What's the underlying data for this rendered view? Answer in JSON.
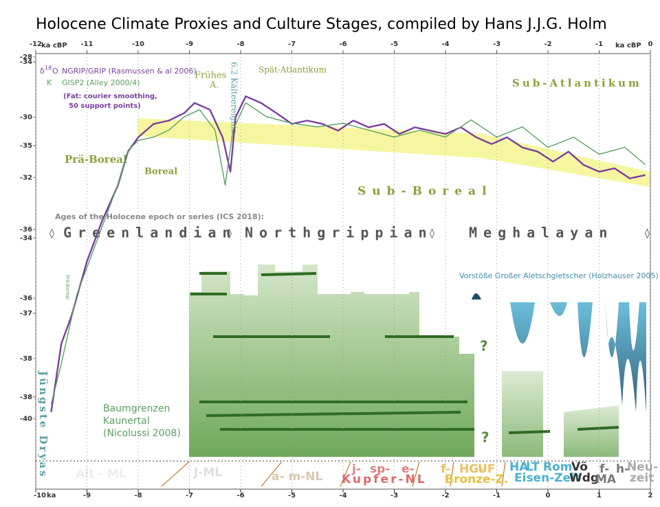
{
  "chart_data": {
    "type": "line",
    "title": "Holocene Climate Proxies and Culture Stages, compiled by Hans J.J.G. Holm",
    "xlim": [
      -12,
      0
    ],
    "xticks": [
      -12,
      -11,
      -10,
      -9,
      -8,
      -7,
      -6,
      -5,
      -4,
      -3,
      -2,
      -1,
      0
    ],
    "x_unit": "ka cBP",
    "x2lim": [
      -10,
      2
    ],
    "x2ticks": [
      -10,
      -9,
      -8,
      -7,
      -6,
      -5,
      -4,
      -3,
      -2,
      -1,
      0,
      1,
      2
    ],
    "x2_unit": "ka",
    "ylim": [
      -39.1,
      -33.9
    ],
    "yticks": [
      -34,
      -35,
      -36,
      -37,
      -38
    ],
    "y2lim": [
      -42.33,
      -27.89
    ],
    "y2ticks": [
      -28,
      -30,
      -32,
      -34,
      -36,
      -38,
      -40
    ],
    "series": [
      {
        "name": "NGRIP/GRIP (Rasmussen & al 2006)",
        "color": "#7b3fa0",
        "x": [
          -11.7,
          -11.5,
          -11.3,
          -11.0,
          -10.7,
          -10.4,
          -10.2,
          -10.0,
          -9.7,
          -9.4,
          -9.1,
          -8.9,
          -8.6,
          -8.35,
          -8.2,
          -8.1,
          -7.9,
          -7.6,
          -7.3,
          -7.0,
          -6.7,
          -6.4,
          -6.1,
          -5.8,
          -5.5,
          -5.2,
          -4.9,
          -4.6,
          -4.3,
          -4.0,
          -3.7,
          -3.4,
          -3.1,
          -2.8,
          -2.5,
          -2.2,
          -1.9,
          -1.6,
          -1.3,
          -1.0,
          -0.7,
          -0.4,
          -0.1
        ],
        "values": [
          -38.18,
          -37.36,
          -37.03,
          -36.38,
          -35.89,
          -35.48,
          -35.07,
          -34.9,
          -34.74,
          -34.7,
          -34.61,
          -34.49,
          -34.57,
          -34.9,
          -35.31,
          -34.66,
          -34.41,
          -34.49,
          -34.61,
          -34.74,
          -34.7,
          -34.74,
          -34.82,
          -34.7,
          -34.78,
          -34.74,
          -34.86,
          -34.78,
          -34.82,
          -34.86,
          -34.78,
          -34.9,
          -34.98,
          -34.9,
          -35.02,
          -35.07,
          -35.19,
          -35.07,
          -35.23,
          -35.31,
          -35.27,
          -35.39,
          -35.35
        ]
      },
      {
        "name": "GISP2 (Alley 2000/4)",
        "color": "#5aa060",
        "axis": "y2",
        "x": [
          -11.7,
          -11.5,
          -11.2,
          -11.0,
          -10.7,
          -10.4,
          -10.2,
          -10.0,
          -9.7,
          -9.4,
          -9.1,
          -8.8,
          -8.5,
          -8.3,
          -8.15,
          -7.9,
          -7.5,
          -7.0,
          -6.5,
          -6.0,
          -5.5,
          -5.0,
          -4.5,
          -4.0,
          -3.5,
          -3.0,
          -2.5,
          -2.0,
          -1.5,
          -1.0,
          -0.5,
          -0.1
        ],
        "values": [
          -39.52,
          -38.16,
          -35.89,
          -34.98,
          -33.61,
          -32.25,
          -31.11,
          -30.77,
          -30.66,
          -30.43,
          -29.98,
          -29.75,
          -30.43,
          -32.25,
          -30.43,
          -29.52,
          -29.98,
          -30.2,
          -30.32,
          -30.2,
          -30.43,
          -30.66,
          -30.43,
          -30.66,
          -30.09,
          -30.66,
          -30.32,
          -31.0,
          -30.66,
          -31.23,
          -31.0,
          -31.57
        ]
      }
    ],
    "legend": {
      "delta": "δ",
      "sup": "18",
      "o": "O",
      "k": "K",
      "note1": "(Fat: courier smoothing,",
      "note2": "50 support points)"
    },
    "periods": {
      "pre_boreal": "Prä-Boreal",
      "boreal": "Boreal",
      "early_a": "Frühes",
      "early_a2": "A.",
      "event": "6.2 Kälteereignis",
      "late_atl": "Spät-Atlantikum",
      "sub_atl": "Sub-Atlantikum",
      "sub_boreal": "Sub-Boreal",
      "dryas": "Jüngste Dryas",
      "pre_boreal_small": "Prä-Boreal"
    },
    "ages": {
      "intro": "Ages of the    Holocene   epoch   or   series (ICS 2018):",
      "greenlandian": "Greenlandian",
      "northgrippian": "Northgrippian",
      "meghalayan": "Meghalayan"
    },
    "glacier": "Vorstöße Großer Aletschgletscher (Holzhauser 2005)",
    "treeline": [
      "Baumgrenzen",
      "Kaunertal",
      "(Nicolussi 2008)"
    ],
    "question": "?",
    "cultures": [
      "Alt - ML",
      "J-ML",
      "a- m-NL",
      "j-",
      "sp-",
      "e-",
      "Kupfer-NL",
      "f-",
      "HG-",
      "UF",
      "Bronze-Z.",
      "HA",
      "LT",
      "Eisen-Zeit",
      "Rom",
      "Vö",
      "Wdg",
      "f-",
      "MA",
      "h-",
      "Neu-",
      "zeit"
    ]
  }
}
